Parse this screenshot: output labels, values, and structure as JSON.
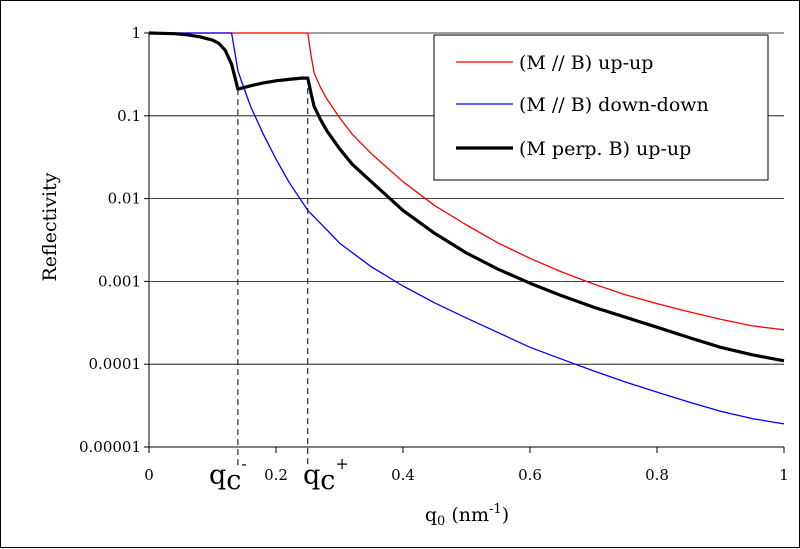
{
  "chart_data": {
    "type": "line",
    "xlabel": {
      "base": "q",
      "sub": "0",
      "unit_open": " (nm",
      "unit_sup": "-1",
      "unit_close": ")"
    },
    "ylabel": "Reflectivity",
    "xlim": [
      0,
      1
    ],
    "ylim": [
      1e-05,
      1
    ],
    "y_scale": "log",
    "x_ticks": [
      "0",
      "0.2",
      "0.4",
      "0.6",
      "0.8",
      "1"
    ],
    "x_tick_values": [
      0,
      0.2,
      0.4,
      0.6,
      0.8,
      1
    ],
    "y_ticks": [
      "1",
      "0.1",
      "0.01",
      "0.001",
      "0.0001",
      "0.00001"
    ],
    "y_tick_values": [
      1,
      0.1,
      0.01,
      0.001,
      0.0001,
      1e-05
    ],
    "legend_position": "top-right",
    "annotations": [
      {
        "base": "q",
        "sub": "c",
        "sup": "-",
        "x": 0.14
      },
      {
        "base": "q",
        "sub": "c",
        "sup": "+",
        "x": 0.25
      }
    ],
    "series": [
      {
        "name": "(M // B) up-up",
        "color": "#ff0000",
        "width": 1.3,
        "x": [
          0,
          0.25,
          0.255,
          0.26,
          0.27,
          0.28,
          0.3,
          0.32,
          0.35,
          0.4,
          0.45,
          0.5,
          0.55,
          0.6,
          0.65,
          0.7,
          0.75,
          0.8,
          0.85,
          0.9,
          0.95,
          1.0
        ],
        "y": [
          1,
          1,
          0.55,
          0.33,
          0.22,
          0.16,
          0.095,
          0.06,
          0.035,
          0.016,
          0.0082,
          0.0048,
          0.0029,
          0.0019,
          0.0013,
          0.00093,
          0.00069,
          0.00054,
          0.00043,
          0.00035,
          0.00029,
          0.00026
        ]
      },
      {
        "name": "(M // B) down-down",
        "color": "#0000ff",
        "width": 1.3,
        "x": [
          0,
          0.13,
          0.135,
          0.14,
          0.15,
          0.16,
          0.18,
          0.2,
          0.22,
          0.25,
          0.28,
          0.3,
          0.35,
          0.4,
          0.45,
          0.5,
          0.55,
          0.6,
          0.65,
          0.7,
          0.75,
          0.8,
          0.85,
          0.9,
          0.95,
          1.0
        ],
        "y": [
          1,
          1,
          0.6,
          0.35,
          0.21,
          0.13,
          0.06,
          0.03,
          0.016,
          0.0072,
          0.0042,
          0.0029,
          0.0015,
          0.00088,
          0.00055,
          0.00036,
          0.00024,
          0.00016,
          0.000115,
          8.3e-05,
          6.1e-05,
          4.6e-05,
          3.5e-05,
          2.7e-05,
          2.2e-05,
          1.9e-05
        ]
      },
      {
        "name": "(M perp. B) up-up",
        "color": "#000000",
        "width": 3.2,
        "x": [
          0,
          0.04,
          0.06,
          0.08,
          0.1,
          0.11,
          0.12,
          0.13,
          0.14,
          0.16,
          0.18,
          0.2,
          0.22,
          0.24,
          0.25,
          0.255,
          0.26,
          0.27,
          0.28,
          0.3,
          0.32,
          0.35,
          0.4,
          0.45,
          0.5,
          0.55,
          0.6,
          0.65,
          0.7,
          0.75,
          0.8,
          0.85,
          0.9,
          0.95,
          1.0
        ],
        "y": [
          1,
          0.98,
          0.95,
          0.9,
          0.82,
          0.75,
          0.62,
          0.42,
          0.21,
          0.23,
          0.25,
          0.265,
          0.275,
          0.285,
          0.285,
          0.19,
          0.13,
          0.09,
          0.066,
          0.04,
          0.026,
          0.016,
          0.0072,
          0.0038,
          0.0022,
          0.0014,
          0.00095,
          0.00067,
          0.00049,
          0.00037,
          0.00028,
          0.00021,
          0.00016,
          0.00013,
          0.00011
        ]
      }
    ]
  }
}
